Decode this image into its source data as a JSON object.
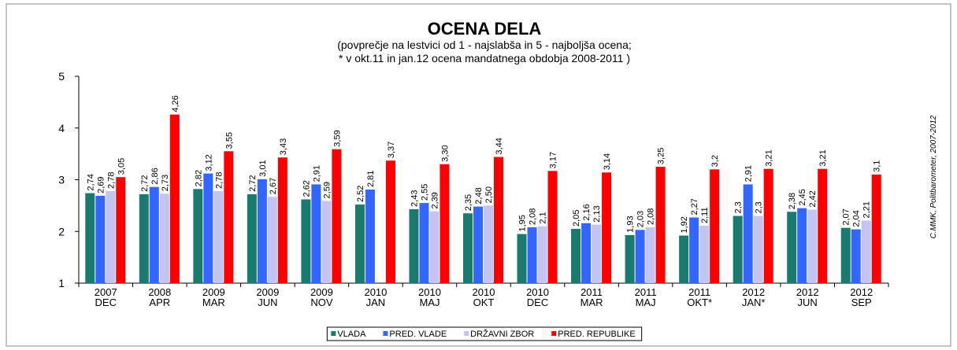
{
  "chart_data": {
    "type": "bar",
    "title": "OCENA DELA",
    "subtitle": [
      "(povprečje na lestvici od 1 - najslabša in 5 - najboljša ocena;",
      "* v okt.11 in jan.12 ocena mandatnega obdobja 2008-2011 )"
    ],
    "source": "C.MMK, Politbarometer, 2007-2012",
    "categories": [
      "2007\nDEC",
      "2008\nAPR",
      "2009\nMAR",
      "2009\nJUN",
      "2009\nNOV",
      "2010\nJAN",
      "2010\nMAJ",
      "2010\nOKT",
      "2010\nDEC",
      "2011\nMAR",
      "2011\nMAJ",
      "2011\nOKT*",
      "2012\nJAN*",
      "2012\nJUN",
      "2012\nSEP"
    ],
    "series": [
      {
        "name": "VLADA",
        "color": "#1a7a6e",
        "values": [
          2.74,
          2.72,
          2.82,
          2.72,
          2.62,
          2.52,
          2.43,
          2.35,
          1.95,
          2.05,
          1.93,
          1.92,
          2.3,
          2.38,
          2.07
        ],
        "value_labels": [
          "2,74",
          "2,72",
          "2,82",
          "2,72",
          "2,62",
          "2,52",
          "2,43",
          "2,35",
          "1,95",
          "2,05",
          "1,93",
          "1,92",
          "2,3",
          "2,38",
          "2,07"
        ]
      },
      {
        "name": "PRED. VLADE",
        "color": "#3366ff",
        "values": [
          2.69,
          2.86,
          3.12,
          3.01,
          2.91,
          2.81,
          2.55,
          2.48,
          2.08,
          2.16,
          2.03,
          2.27,
          2.91,
          2.45,
          2.04
        ],
        "value_labels": [
          "2,69",
          "2,86",
          "3,12",
          "3,01",
          "2,91",
          "2,81",
          "2,55",
          "2,48",
          "2,08",
          "2,16",
          "2,03",
          "2,27",
          "2,91",
          "2,45",
          "2,04"
        ]
      },
      {
        "name": "DRŽAVNI ZBOR",
        "color": "#c4c4f2",
        "values": [
          2.78,
          2.73,
          2.78,
          2.67,
          2.59,
          null,
          2.39,
          2.5,
          2.1,
          2.13,
          2.08,
          2.11,
          2.3,
          2.42,
          2.21
        ],
        "value_labels": [
          "2,78",
          "2,73",
          "2,78",
          "2,67",
          "2,59",
          null,
          "2,39",
          "2,50",
          "2,1",
          "2,13",
          "2,08",
          "2,11",
          "2,3",
          "2,42",
          "2,21"
        ]
      },
      {
        "name": "PRED. REPUBLIKE",
        "color": "#ff0000",
        "values": [
          3.05,
          4.26,
          3.55,
          3.43,
          3.59,
          3.37,
          3.3,
          3.44,
          3.17,
          3.14,
          3.25,
          3.2,
          3.21,
          3.21,
          3.1
        ],
        "value_labels": [
          "3,05",
          "4,26",
          "3,55",
          "3,43",
          "3,59",
          "3,37",
          "3,30",
          "3,44",
          "3,17",
          "3,14",
          "3,25",
          "3,2",
          "3,21",
          "3,21",
          "3,1"
        ]
      }
    ],
    "ylim": [
      1,
      5
    ],
    "yticks": [
      1,
      2,
      3,
      4,
      5
    ]
  }
}
